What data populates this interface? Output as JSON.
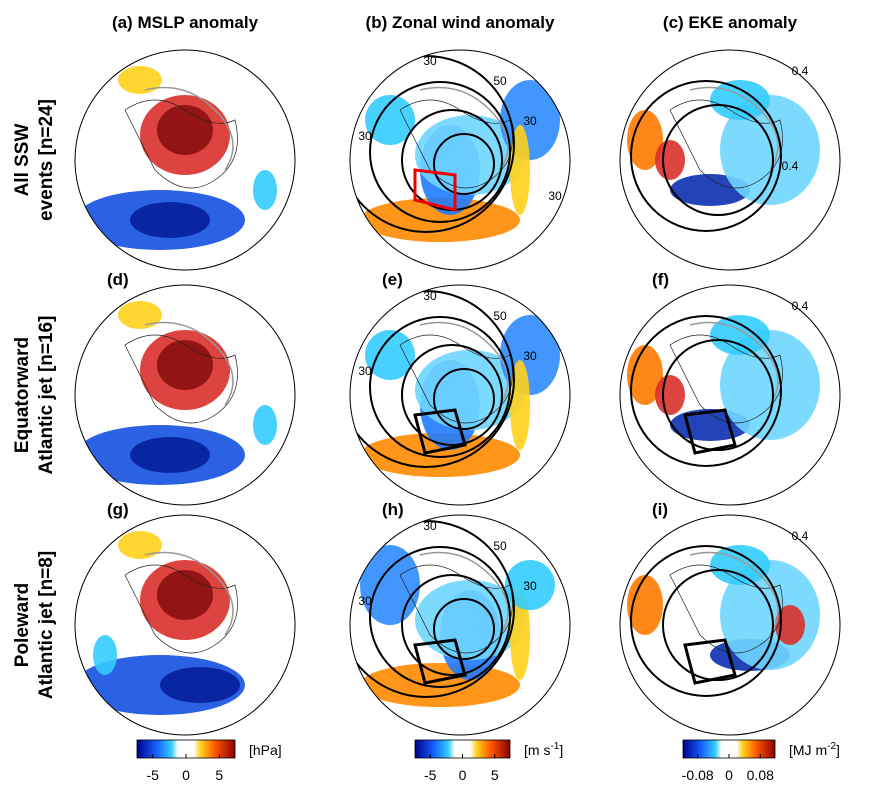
{
  "column_titles": [
    "(a) MSLP anomaly",
    "(b) Zonal wind anomaly",
    "(c) EKE anomaly"
  ],
  "row_labels": [
    [
      "All SSW",
      "events [n=24]"
    ],
    [
      "Equatorward",
      "Atlantic jet [n=16]"
    ],
    [
      "Poleward",
      "Atlantic jet [n=8]"
    ]
  ],
  "panel_labels": [
    "(d)",
    "(e)",
    "(f)",
    "(g)",
    "(h)",
    "(i)"
  ],
  "contour_labels": [
    [],
    [
      "30",
      "50",
      "30",
      "30",
      "30"
    ],
    [
      "0.4",
      "0.4"
    ],
    [],
    [
      "30",
      "50",
      "30",
      "30"
    ],
    [
      "0.4"
    ],
    [],
    [
      "30",
      "50",
      "30",
      "30"
    ],
    [
      "0.4"
    ]
  ],
  "colorbars": [
    {
      "ticks": [
        "-5",
        "0",
        "5"
      ],
      "unit": {
        "base": "[hPa]",
        "exponent": "",
        "close": ""
      }
    },
    {
      "ticks": [
        "-5",
        "0",
        "5"
      ],
      "unit": {
        "base": "[m s",
        "exponent": "-1",
        "close": "]"
      }
    },
    {
      "ticks": [
        "-0.08",
        "0",
        "0.08"
      ],
      "unit": {
        "base": "[MJ m",
        "exponent": "-2",
        "close": "]"
      }
    }
  ]
}
